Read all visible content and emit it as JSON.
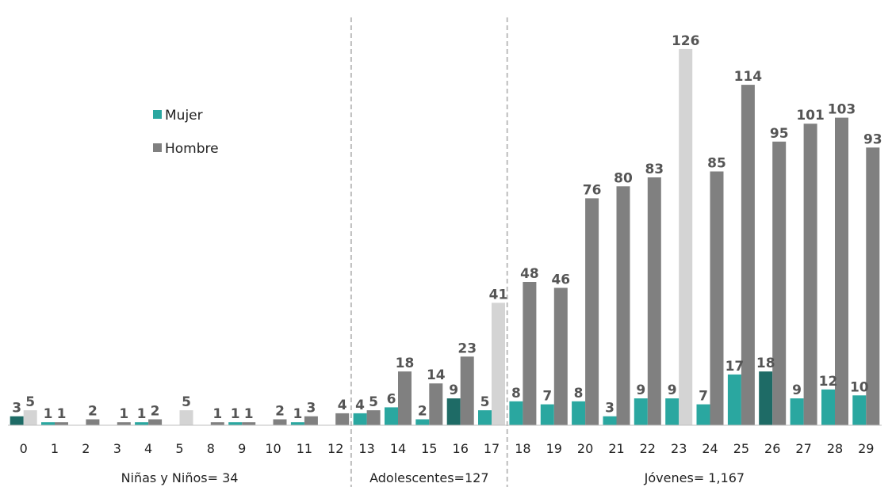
{
  "chart_data": {
    "type": "bar",
    "categories": [
      "0",
      "1",
      "2",
      "3",
      "4",
      "5",
      "8",
      "9",
      "10",
      "11",
      "12",
      "13",
      "14",
      "15",
      "16",
      "17",
      "18",
      "19",
      "20",
      "21",
      "22",
      "23",
      "24",
      "25",
      "26",
      "27",
      "28",
      "29"
    ],
    "series": [
      {
        "name": "Mujer",
        "color": "#2aa7a0",
        "values": [
          3,
          1,
          0,
          0,
          1,
          0,
          0,
          1,
          0,
          1,
          0,
          4,
          6,
          2,
          9,
          5,
          8,
          7,
          8,
          3,
          9,
          9,
          7,
          17,
          18,
          9,
          12,
          10
        ]
      },
      {
        "name": "Hombre",
        "color": "#808080",
        "values": [
          5,
          1,
          2,
          1,
          2,
          5,
          1,
          1,
          2,
          3,
          4,
          5,
          18,
          14,
          23,
          41,
          48,
          46,
          76,
          80,
          83,
          126,
          85,
          114,
          95,
          101,
          103,
          93
        ]
      }
    ],
    "highlight_colors": {
      "mujer_dark": "#1e6b66",
      "hombre_light": "#d4d4d4"
    },
    "highlights": [
      {
        "series": "Mujer",
        "category": "0",
        "tone": "dark"
      },
      {
        "series": "Mujer",
        "category": "16",
        "tone": "dark"
      },
      {
        "series": "Mujer",
        "category": "26",
        "tone": "dark"
      },
      {
        "series": "Hombre",
        "category": "0",
        "tone": "light"
      },
      {
        "series": "Hombre",
        "category": "5",
        "tone": "light"
      },
      {
        "series": "Hombre",
        "category": "17",
        "tone": "light"
      },
      {
        "series": "Hombre",
        "category": "23",
        "tone": "light"
      }
    ],
    "groups": [
      {
        "label": "Niñas y Niños= 34",
        "first": "0",
        "last": "12"
      },
      {
        "label": "Adolescentes=127",
        "first": "13",
        "last": "17"
      },
      {
        "label": "Jóvenes= 1,167",
        "first": "18",
        "last": "29"
      }
    ],
    "ylim": [
      0,
      130
    ],
    "grid": false,
    "legend": "upper-left"
  }
}
